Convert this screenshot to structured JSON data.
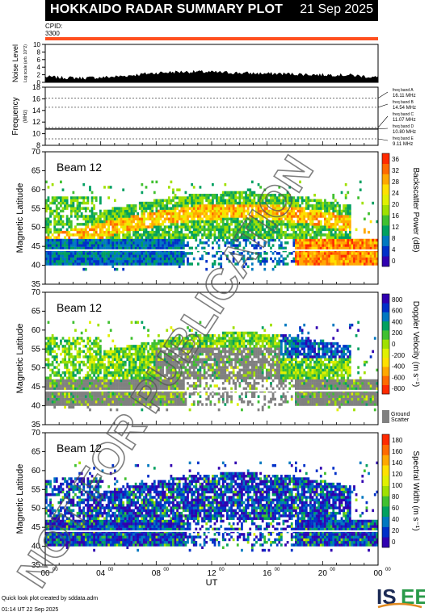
{
  "header": {
    "title": "HOKKAIDO RADAR SUMMARY PLOT",
    "date": "21 Sep 2025"
  },
  "cpid": {
    "label": "CPID:",
    "value": "3300"
  },
  "watermark": "NOT FOR PUBLICATION",
  "footer": {
    "credit": "Quick look plot created by sddata.adm",
    "timestamp": "01:14 UT 22 Sep 2025",
    "logo_text": "ISEE"
  },
  "colors": {
    "cpid_bar": "#ff4f1e",
    "ground_scatter": "#808080",
    "power_scale": [
      "#ff2a00",
      "#ff6a00",
      "#ffa800",
      "#ffe000",
      "#e0f000",
      "#a0e000",
      "#40c030",
      "#00a060",
      "#0078c0",
      "#0030c8",
      "#3000b0"
    ],
    "velocity_scale": [
      "#3000b0",
      "#0030c8",
      "#0078c0",
      "#00a060",
      "#40c030",
      "#a0e000",
      "#e0f000",
      "#ffe000",
      "#ffa800",
      "#ff6a00",
      "#ff2a00"
    ],
    "width_scale": [
      "#ff2a00",
      "#ff6a00",
      "#ffa800",
      "#ffe000",
      "#e0f000",
      "#a0e000",
      "#40c030",
      "#00a060",
      "#0078c0",
      "#0030c8",
      "#3000b0"
    ]
  },
  "chart_data": [
    {
      "type": "area",
      "panel": "noise",
      "ylabel": "Noise Level",
      "ylabel_sub": "Log scale (arb. 10^2)",
      "ylim": [
        0,
        10
      ],
      "yticks": [
        "0",
        "2",
        "4",
        "6",
        "8",
        "10"
      ],
      "x": [
        0,
        1,
        2,
        3,
        4,
        5,
        6,
        7,
        8,
        9,
        10,
        11,
        12,
        13,
        14,
        15,
        16,
        17,
        18,
        19,
        20,
        21,
        22,
        23,
        24
      ],
      "values": [
        1.5,
        1.3,
        1.2,
        1.2,
        1.3,
        1.5,
        1.8,
        2.2,
        2.5,
        2.7,
        2.8,
        2.8,
        2.7,
        2.6,
        2.5,
        2.4,
        2.3,
        2.3,
        2.2,
        2.1,
        2.0,
        2.0,
        1.9,
        1.6,
        1.3
      ]
    },
    {
      "type": "line",
      "panel": "frequency",
      "ylabel": "Frequency",
      "ylabel_unit": "(MHz)",
      "ylim": [
        8,
        18
      ],
      "yticks": [
        "8",
        "10",
        "12",
        "14",
        "16",
        "18"
      ],
      "freq_bands": [
        {
          "name": "freq band A",
          "value": "16.11 MHz",
          "mhz": 16.11
        },
        {
          "name": "freq band B",
          "value": "14.54 MHz",
          "mhz": 14.54
        },
        {
          "name": "freq band C",
          "value": "11.07 MHz",
          "mhz": 11.07
        },
        {
          "name": "freq band D",
          "value": "10.80 MHz",
          "mhz": 10.8
        },
        {
          "name": "freq band E",
          "value": "9.11 MHz",
          "mhz": 9.11
        }
      ],
      "operating_mhz": 10.8
    },
    {
      "type": "heatmap",
      "panel": "power",
      "beam_label": "Beam 12",
      "ylabel": "Magnetic Latitude",
      "ylim": [
        35,
        70
      ],
      "yticks": [
        "35",
        "40",
        "45",
        "50",
        "55",
        "60",
        "65",
        "70"
      ],
      "colorbar_label": "Backscatter Power (dB)",
      "colorbar_ticks": [
        "0",
        "4",
        "8",
        "12",
        "16",
        "20",
        "24",
        "28",
        "32",
        "36"
      ],
      "zlim": [
        0,
        40
      ]
    },
    {
      "type": "heatmap",
      "panel": "velocity",
      "beam_label": "Beam 12",
      "ylabel": "Magnetic Latitude",
      "ylim": [
        35,
        70
      ],
      "yticks": [
        "35",
        "40",
        "45",
        "50",
        "55",
        "60",
        "65",
        "70"
      ],
      "colorbar_label": "Doppler Velocity (m s⁻¹)",
      "colorbar_ticks": [
        "-800",
        "-600",
        "-400",
        "-200",
        "0",
        "200",
        "400",
        "600",
        "800"
      ],
      "zlim": [
        -1000,
        1000
      ],
      "ground_scatter_label": [
        "Ground",
        "Scatter"
      ]
    },
    {
      "type": "heatmap",
      "panel": "width",
      "beam_label": "Beam 12",
      "ylabel": "Magnetic Latitude",
      "ylim": [
        35,
        70
      ],
      "yticks": [
        "35",
        "40",
        "45",
        "50",
        "55",
        "60",
        "65",
        "70"
      ],
      "colorbar_label": "Spectral Width (m s⁻¹)",
      "colorbar_ticks": [
        "0",
        "20",
        "40",
        "60",
        "80",
        "100",
        "120",
        "140",
        "160",
        "180"
      ],
      "zlim": [
        0,
        200
      ],
      "xlabel": "UT",
      "xticks": [
        "00",
        "04",
        "08",
        "12",
        "16",
        "20",
        "00"
      ],
      "xlim": [
        0,
        24
      ]
    }
  ]
}
